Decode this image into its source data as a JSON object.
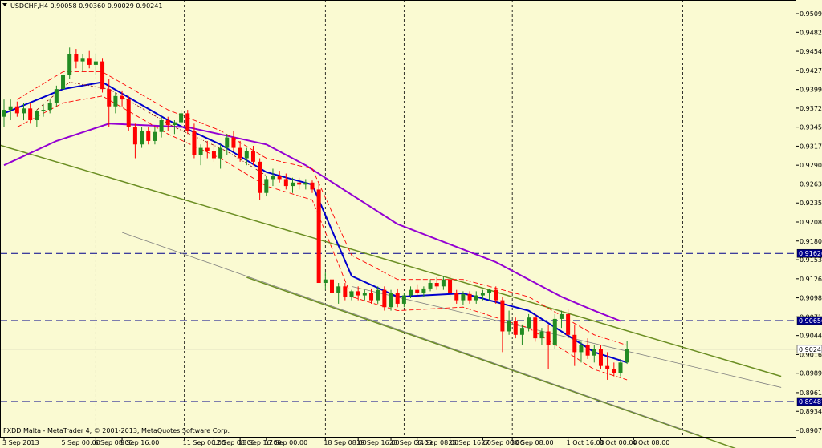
{
  "header": {
    "symbol_line": "USDCHF,H4  0.90058 0.90360 0.90029 0.90241",
    "footer": "FXDD Malta - MetaTrader 4, © 2001-2013, MetaQuotes Software Corp."
  },
  "colors": {
    "background": "#fafad2",
    "bull": "#228b22",
    "bear": "#ff0000",
    "ma_fast": "#0000cd",
    "ma_slow": "#9400d3",
    "envelope": "#ff0000",
    "channel": "#6b8e23",
    "channel_thin": "#808080",
    "hline": "#00008b"
  },
  "chart_data": {
    "type": "candlestick",
    "symbol": "USDCHF",
    "timeframe": "H4",
    "ylim": [
      0.8907,
      0.9509
    ],
    "y_ticks": [
      "0.95090",
      "0.94820",
      "0.94545",
      "0.94270",
      "0.93995",
      "0.93725",
      "0.93450",
      "0.93175",
      "0.92900",
      "0.92630",
      "0.92355",
      "0.92080",
      "0.91805",
      "0.91535",
      "0.91260",
      "0.90985",
      "0.90710",
      "0.90440",
      "0.90165",
      "0.89895",
      "0.89615",
      "0.89345",
      "0.89070"
    ],
    "x_ticks": [
      "3 Sep 2013",
      "5 Sep 00:00",
      "6 Sep 08:00",
      "9 Sep 16:00",
      "11 Sep 00:00",
      "12 Sep 08:00",
      "13 Sep 16:00",
      "17 Sep 00:00",
      "18 Sep 08:00",
      "19 Sep 16:00",
      "23 Sep 00:00",
      "24 Sep 08:00",
      "25 Sep 16:00",
      "27 Sep 00:00",
      "30 Sep 08:00",
      "1 Oct 16:00",
      "3 Oct 00:00",
      "4 Oct 08:00"
    ],
    "price_markers": [
      {
        "value": 0.91626,
        "label": "0.91626",
        "style": "dashed"
      },
      {
        "value": 0.90656,
        "label": "0.90656",
        "style": "dashed"
      },
      {
        "value": 0.90241,
        "label": "0.90241",
        "style": "solid"
      },
      {
        "value": 0.89487,
        "label": "0.89487",
        "style": "dashed"
      }
    ],
    "candles": [
      [
        0.936,
        0.9385,
        0.9345,
        0.937
      ],
      [
        0.937,
        0.9385,
        0.9355,
        0.9375
      ],
      [
        0.9375,
        0.9382,
        0.936,
        0.9365
      ],
      [
        0.9365,
        0.938,
        0.9355,
        0.9372
      ],
      [
        0.9372,
        0.938,
        0.935,
        0.9355
      ],
      [
        0.9355,
        0.937,
        0.9345,
        0.9368
      ],
      [
        0.9368,
        0.9378,
        0.936,
        0.937
      ],
      [
        0.937,
        0.9385,
        0.9365,
        0.938
      ],
      [
        0.938,
        0.9405,
        0.9375,
        0.94
      ],
      [
        0.94,
        0.9425,
        0.9395,
        0.942
      ],
      [
        0.942,
        0.946,
        0.9415,
        0.945
      ],
      [
        0.945,
        0.9458,
        0.943,
        0.944
      ],
      [
        0.944,
        0.945,
        0.9425,
        0.9445
      ],
      [
        0.9445,
        0.9455,
        0.943,
        0.9435
      ],
      [
        0.9435,
        0.945,
        0.942,
        0.944
      ],
      [
        0.944,
        0.9445,
        0.9395,
        0.94
      ],
      [
        0.94,
        0.9415,
        0.9345,
        0.9375
      ],
      [
        0.9375,
        0.9395,
        0.9365,
        0.939
      ],
      [
        0.939,
        0.9398,
        0.9375,
        0.9385
      ],
      [
        0.9385,
        0.939,
        0.934,
        0.9345
      ],
      [
        0.9345,
        0.935,
        0.93,
        0.932
      ],
      [
        0.932,
        0.9345,
        0.9315,
        0.934
      ],
      [
        0.934,
        0.9345,
        0.932,
        0.9325
      ],
      [
        0.9325,
        0.9345,
        0.932,
        0.9338
      ],
      [
        0.9338,
        0.936,
        0.933,
        0.9355
      ],
      [
        0.9355,
        0.936,
        0.934,
        0.9348
      ],
      [
        0.9348,
        0.9355,
        0.9335,
        0.9352
      ],
      [
        0.9352,
        0.937,
        0.9345,
        0.9365
      ],
      [
        0.9365,
        0.937,
        0.9335,
        0.934
      ],
      [
        0.934,
        0.935,
        0.93,
        0.9305
      ],
      [
        0.9305,
        0.932,
        0.929,
        0.9315
      ],
      [
        0.9315,
        0.9325,
        0.93,
        0.931
      ],
      [
        0.931,
        0.932,
        0.9295,
        0.93
      ],
      [
        0.93,
        0.932,
        0.9285,
        0.9315
      ],
      [
        0.9315,
        0.9335,
        0.9305,
        0.933
      ],
      [
        0.933,
        0.934,
        0.931,
        0.9315
      ],
      [
        0.9315,
        0.9325,
        0.9295,
        0.93
      ],
      [
        0.93,
        0.9315,
        0.929,
        0.931
      ],
      [
        0.931,
        0.9318,
        0.929,
        0.9295
      ],
      [
        0.9295,
        0.93,
        0.924,
        0.925
      ],
      [
        0.925,
        0.9275,
        0.9245,
        0.927
      ],
      [
        0.927,
        0.9285,
        0.926,
        0.9275
      ],
      [
        0.9275,
        0.9282,
        0.9265,
        0.927
      ],
      [
        0.927,
        0.9278,
        0.9255,
        0.926
      ],
      [
        0.926,
        0.9272,
        0.925,
        0.9265
      ],
      [
        0.9265,
        0.9272,
        0.9255,
        0.9262
      ],
      [
        0.9262,
        0.927,
        0.9255,
        0.9265
      ],
      [
        0.9265,
        0.9268,
        0.925,
        0.9255
      ],
      [
        0.9255,
        0.9265,
        0.912,
        0.912
      ],
      [
        0.912,
        0.9135,
        0.911,
        0.9125
      ],
      [
        0.9125,
        0.913,
        0.91,
        0.9105
      ],
      [
        0.9105,
        0.912,
        0.909,
        0.9115
      ],
      [
        0.9115,
        0.912,
        0.9095,
        0.91
      ],
      [
        0.91,
        0.911,
        0.9095,
        0.9108
      ],
      [
        0.9108,
        0.9115,
        0.9095,
        0.9102
      ],
      [
        0.9102,
        0.911,
        0.9095,
        0.9105
      ],
      [
        0.9105,
        0.9112,
        0.909,
        0.9095
      ],
      [
        0.9095,
        0.9115,
        0.909,
        0.911
      ],
      [
        0.911,
        0.9115,
        0.908,
        0.9085
      ],
      [
        0.9085,
        0.911,
        0.908,
        0.9105
      ],
      [
        0.9105,
        0.9112,
        0.9085,
        0.909
      ],
      [
        0.909,
        0.9105,
        0.9085,
        0.9102
      ],
      [
        0.9102,
        0.9115,
        0.9098,
        0.911
      ],
      [
        0.911,
        0.9118,
        0.91,
        0.9105
      ],
      [
        0.9105,
        0.9115,
        0.91,
        0.9112
      ],
      [
        0.9112,
        0.9125,
        0.9108,
        0.912
      ],
      [
        0.912,
        0.9128,
        0.911,
        0.9115
      ],
      [
        0.9115,
        0.913,
        0.911,
        0.9125
      ],
      [
        0.9125,
        0.9132,
        0.91,
        0.9105
      ],
      [
        0.9105,
        0.911,
        0.909,
        0.9095
      ],
      [
        0.9095,
        0.9108,
        0.9088,
        0.9104
      ],
      [
        0.9104,
        0.9108,
        0.909,
        0.9095
      ],
      [
        0.9095,
        0.9108,
        0.909,
        0.9102
      ],
      [
        0.9102,
        0.911,
        0.9095,
        0.9105
      ],
      [
        0.9105,
        0.9112,
        0.9095,
        0.911
      ],
      [
        0.911,
        0.9115,
        0.909,
        0.9095
      ],
      [
        0.9095,
        0.91,
        0.902,
        0.905
      ],
      [
        0.905,
        0.908,
        0.9045,
        0.9065
      ],
      [
        0.9065,
        0.907,
        0.904,
        0.9045
      ],
      [
        0.9045,
        0.906,
        0.903,
        0.9055
      ],
      [
        0.9055,
        0.9075,
        0.905,
        0.907
      ],
      [
        0.907,
        0.9075,
        0.9035,
        0.904
      ],
      [
        0.904,
        0.9055,
        0.903,
        0.905
      ],
      [
        0.905,
        0.906,
        0.8995,
        0.903
      ],
      [
        0.903,
        0.9075,
        0.9025,
        0.9068
      ],
      [
        0.9068,
        0.908,
        0.9055,
        0.9075
      ],
      [
        0.9075,
        0.9082,
        0.904,
        0.9045
      ],
      [
        0.9045,
        0.906,
        0.9,
        0.902
      ],
      [
        0.902,
        0.9035,
        0.9005,
        0.903
      ],
      [
        0.903,
        0.904,
        0.901,
        0.9015
      ],
      [
        0.9015,
        0.903,
        0.9005,
        0.9025
      ],
      [
        0.9025,
        0.903,
        0.8995,
        0.9
      ],
      [
        0.9,
        0.902,
        0.898,
        0.8995
      ],
      [
        0.8995,
        0.9005,
        0.8985,
        0.899
      ],
      [
        0.899,
        0.901,
        0.8985,
        0.9005
      ],
      [
        0.9005,
        0.9036,
        0.9003,
        0.9024
      ]
    ],
    "series": [
      {
        "name": "ma_fast",
        "anchors": [
          [
            0,
            0.9365
          ],
          [
            9,
            0.94
          ],
          [
            15,
            0.941
          ],
          [
            25,
            0.9355
          ],
          [
            33,
            0.932
          ],
          [
            40,
            0.928
          ],
          [
            47,
            0.9262
          ],
          [
            53,
            0.913
          ],
          [
            60,
            0.91
          ],
          [
            70,
            0.9105
          ],
          [
            80,
            0.908
          ],
          [
            90,
            0.902
          ],
          [
            95,
            0.9005
          ]
        ]
      },
      {
        "name": "ma_slow",
        "anchors": [
          [
            0,
            0.929
          ],
          [
            8,
            0.9325
          ],
          [
            16,
            0.935
          ],
          [
            28,
            0.9345
          ],
          [
            40,
            0.932
          ],
          [
            46,
            0.929
          ],
          [
            60,
            0.9205
          ],
          [
            75,
            0.915
          ],
          [
            85,
            0.91
          ],
          [
            90,
            0.908
          ],
          [
            94,
            0.9065
          ]
        ]
      },
      {
        "name": "env_upper",
        "anchors": [
          [
            2,
            0.9385
          ],
          [
            9,
            0.9425
          ],
          [
            15,
            0.9425
          ],
          [
            25,
            0.937
          ],
          [
            33,
            0.934
          ],
          [
            40,
            0.93
          ],
          [
            47,
            0.9285
          ],
          [
            53,
            0.916
          ],
          [
            60,
            0.9125
          ],
          [
            70,
            0.9125
          ],
          [
            80,
            0.91
          ],
          [
            90,
            0.9045
          ],
          [
            95,
            0.903
          ]
        ]
      },
      {
        "name": "env_lower",
        "anchors": [
          [
            2,
            0.9345
          ],
          [
            9,
            0.938
          ],
          [
            15,
            0.939
          ],
          [
            25,
            0.9335
          ],
          [
            33,
            0.93
          ],
          [
            40,
            0.926
          ],
          [
            47,
            0.924
          ],
          [
            53,
            0.91
          ],
          [
            60,
            0.908
          ],
          [
            70,
            0.9085
          ],
          [
            80,
            0.9055
          ],
          [
            90,
            0.8995
          ],
          [
            95,
            0.898
          ]
        ]
      },
      {
        "name": "env_mid",
        "anchors": [
          [
            5,
            0.937
          ],
          [
            10,
            0.941
          ],
          [
            16,
            0.94
          ],
          [
            26,
            0.9345
          ],
          [
            34,
            0.931
          ],
          [
            40,
            0.9275
          ]
        ]
      }
    ],
    "trendlines": [
      {
        "name": "channel_upper",
        "from": [
          -1,
          0.932
        ],
        "to": [
          118.5,
          0.8985
        ],
        "color_key": "channel",
        "width": 1.5
      },
      {
        "name": "channel_lower",
        "from": [
          37,
          0.9128
        ],
        "to": [
          113,
          0.8876
        ],
        "color_key": "channel",
        "width": 1.5
      },
      {
        "name": "channel_thin_upper",
        "from": [
          53,
          0.9115
        ],
        "to": [
          118.5,
          0.8969
        ],
        "color_key": "channel_thin",
        "width": 0.8
      },
      {
        "name": "channel_thin_lower",
        "from": [
          18,
          0.9193
        ],
        "to": [
          106,
          0.89
        ],
        "color_key": "channel_thin",
        "width": 0.8
      }
    ]
  }
}
